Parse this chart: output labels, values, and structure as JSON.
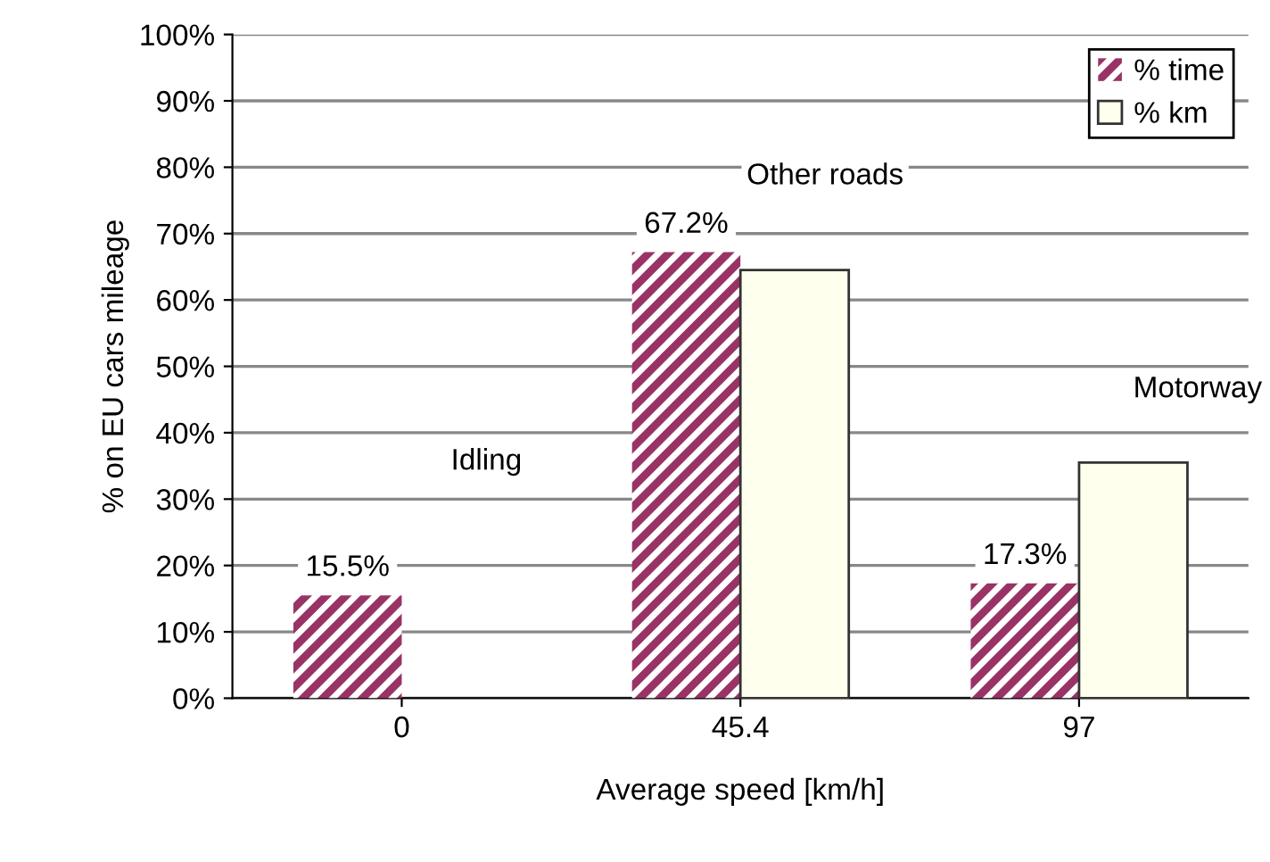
{
  "chart_data": {
    "type": "bar",
    "xlabel": "Average speed [km/h]",
    "ylabel": "% on EU cars mileage",
    "categories": [
      "0",
      "45.4",
      "97"
    ],
    "series": [
      {
        "name": "% time",
        "color": "#993366",
        "values": [
          15.5,
          67.2,
          17.3
        ],
        "value_labels": [
          "15.5%",
          "67.2%",
          "17.3%"
        ]
      },
      {
        "name": "% km",
        "color": "#ffffee",
        "values": [
          null,
          64.5,
          35.5
        ]
      }
    ],
    "ylim": [
      0,
      100
    ],
    "yticks": [
      {
        "value": 0,
        "label": "0%"
      },
      {
        "value": 10,
        "label": "10%"
      },
      {
        "value": 20,
        "label": "20%"
      },
      {
        "value": 30,
        "label": "30%"
      },
      {
        "value": 40,
        "label": "40%"
      },
      {
        "value": 50,
        "label": "50%"
      },
      {
        "value": 60,
        "label": "60%"
      },
      {
        "value": 70,
        "label": "70%"
      },
      {
        "value": 80,
        "label": "80%"
      },
      {
        "value": 90,
        "label": "90%"
      },
      {
        "value": 100,
        "label": "100%"
      }
    ],
    "grid": "y",
    "legend": "top right",
    "annotations": [
      "Idling",
      "Other roads",
      "Motorway"
    ]
  }
}
